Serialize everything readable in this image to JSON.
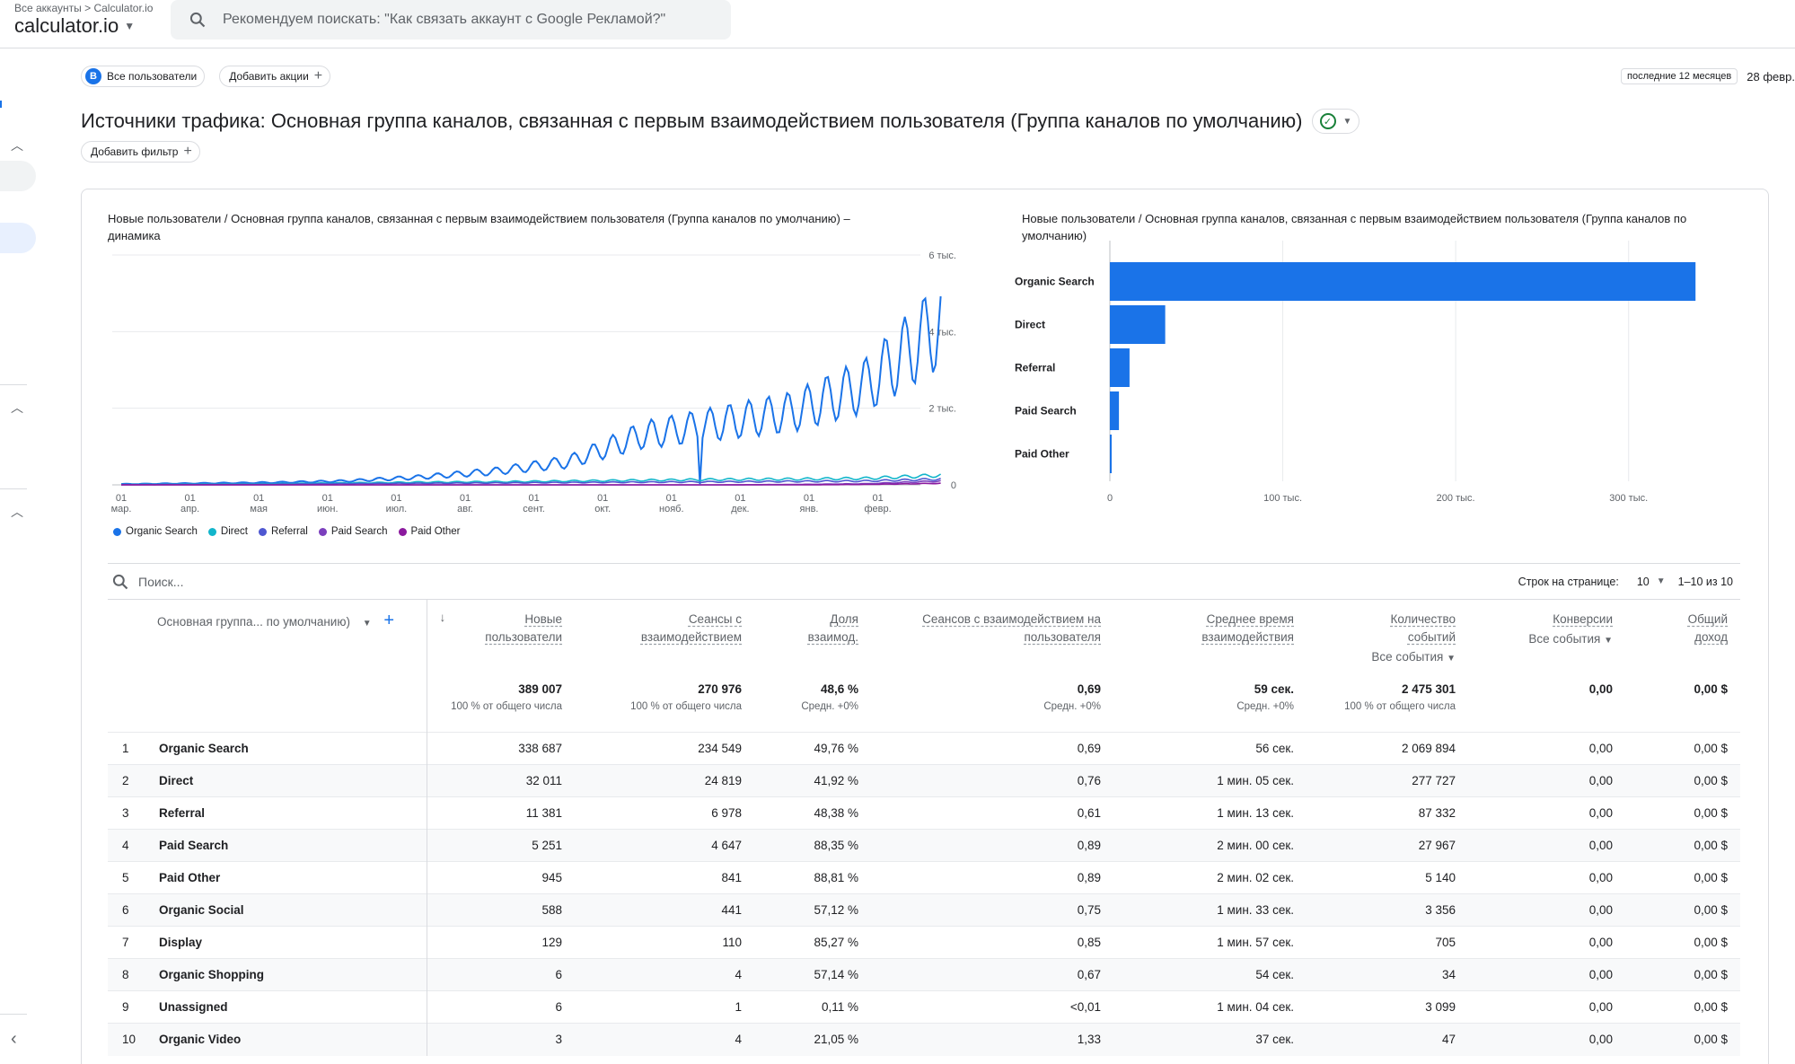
{
  "topbar": {
    "breadcrumb_root": "Все аккаунты",
    "breadcrumb_child": "Calculator.io",
    "account": "calculator.io",
    "search_placeholder": "Рекомендуем поискать: \"Как связать аккаунт с Google Рекламой?\""
  },
  "segments": {
    "avatar_letter": "B",
    "all_users": "Все пользователи",
    "add_comparison": "Добавить акции"
  },
  "date": {
    "range_label": "последние 12 месяцев",
    "start": "28 февр."
  },
  "page": {
    "title": "Источники трафика: Основная группа каналов, связанная с первым взаимодействием пользователя (Группа каналов по умолчанию)",
    "add_filter": "Добавить фильтр"
  },
  "line_chart": {
    "title_line1": "Новые пользователи / Основная группа каналов, связанная с первым взаимодействием пользователя (Группа каналов по умолчанию) –",
    "title_line2": "динамика",
    "y_labels": [
      "6 тыс.",
      "4 тыс.",
      "2 тыс.",
      "0"
    ],
    "x_labels": [
      {
        "d": "01",
        "m": "мар."
      },
      {
        "d": "01",
        "m": "апр."
      },
      {
        "d": "01",
        "m": "мая"
      },
      {
        "d": "01",
        "m": "июн."
      },
      {
        "d": "01",
        "m": "июл."
      },
      {
        "d": "01",
        "m": "авг."
      },
      {
        "d": "01",
        "m": "сент."
      },
      {
        "d": "01",
        "m": "окт."
      },
      {
        "d": "01",
        "m": "нояб."
      },
      {
        "d": "01",
        "m": "дек."
      },
      {
        "d": "01",
        "m": "янв."
      },
      {
        "d": "01",
        "m": "февр."
      }
    ]
  },
  "legend": [
    {
      "name": "Organic Search",
      "color": "#1a73e8"
    },
    {
      "name": "Direct",
      "color": "#12b5cb"
    },
    {
      "name": "Referral",
      "color": "#4e57d1"
    },
    {
      "name": "Paid Search",
      "color": "#7b3fbd"
    },
    {
      "name": "Paid Other",
      "color": "#8b1a9e"
    }
  ],
  "bar_chart": {
    "title_line1": "Новые пользователи / Основная группа каналов, связанная с первым взаимодействием пользователя (Группа каналов по",
    "title_line2": "умолчанию)",
    "x_ticks": [
      "0",
      "100 тыс.",
      "200 тыс.",
      "300 тыс."
    ]
  },
  "chart_data": [
    {
      "type": "line",
      "x": [
        "01 мар.",
        "01 апр.",
        "01 мая",
        "01 июн.",
        "01 июл.",
        "01 авг.",
        "01 сент.",
        "01 окт.",
        "01 нояб.",
        "01 дек.",
        "01 янв.",
        "01 февр."
      ],
      "ylim": [
        0,
        6000
      ],
      "series": [
        {
          "name": "Organic Search",
          "values": [
            20,
            40,
            60,
            100,
            200,
            350,
            600,
            1300,
            1600,
            1900,
            2600,
            4200
          ]
        },
        {
          "name": "Direct",
          "values": [
            10,
            20,
            30,
            50,
            70,
            80,
            100,
            120,
            140,
            150,
            170,
            250
          ]
        },
        {
          "name": "Referral",
          "values": [
            5,
            10,
            15,
            30,
            40,
            50,
            60,
            70,
            80,
            90,
            100,
            150
          ]
        },
        {
          "name": "Paid Search",
          "values": [
            0,
            0,
            0,
            0,
            0,
            0,
            0,
            0,
            0,
            10,
            30,
            100
          ]
        },
        {
          "name": "Paid Other",
          "values": [
            0,
            0,
            0,
            0,
            0,
            0,
            0,
            0,
            0,
            0,
            10,
            40
          ]
        }
      ]
    },
    {
      "type": "bar",
      "categories": [
        "Organic Search",
        "Direct",
        "Referral",
        "Paid Search",
        "Paid Other"
      ],
      "values": [
        338687,
        32011,
        11381,
        5251,
        945
      ],
      "xlim": [
        0,
        350000
      ],
      "x_ticks": [
        0,
        100000,
        200000,
        300000
      ]
    }
  ],
  "table": {
    "search_placeholder": "Поиск...",
    "rows_per_page_label": "Строк на странице:",
    "rows_per_page": "10",
    "range": "1–10 из 10",
    "dim_header": "Основная группа... по умолчанию)",
    "headers": [
      {
        "l1": "Новые",
        "l2": "пользователи"
      },
      {
        "l1": "Сеансы с",
        "l2": "взаимодействием"
      },
      {
        "l1": "Доля",
        "l2": "взаимод."
      },
      {
        "l1": "Сеансов с взаимодействием на",
        "l2": "пользователя"
      },
      {
        "l1": "Среднее время",
        "l2": "взаимодействия"
      },
      {
        "l1": "Количество",
        "l2": "событий",
        "sub": "Все события"
      },
      {
        "l1": "Конверсии",
        "l2": "",
        "sub": "Все события"
      },
      {
        "l1": "Общий",
        "l2": "доход"
      }
    ],
    "totals": [
      {
        "v": "389 007",
        "s": "100 % от общего числа"
      },
      {
        "v": "270 976",
        "s": "100 % от общего числа"
      },
      {
        "v": "48,6 %",
        "s": "Средн. +0%"
      },
      {
        "v": "0,69",
        "s": "Средн. +0%"
      },
      {
        "v": "59 сек.",
        "s": "Средн. +0%"
      },
      {
        "v": "2 475 301",
        "s": "100 % от общего числа"
      },
      {
        "v": "0,00",
        "s": ""
      },
      {
        "v": "0,00 $",
        "s": ""
      }
    ],
    "rows": [
      {
        "i": "1",
        "name": "Organic Search",
        "c": [
          "338 687",
          "234 549",
          "49,76 %",
          "0,69",
          "56 сек.",
          "2 069 894",
          "0,00",
          "0,00 $"
        ]
      },
      {
        "i": "2",
        "name": "Direct",
        "c": [
          "32 011",
          "24 819",
          "41,92 %",
          "0,76",
          "1 мин. 05 сек.",
          "277 727",
          "0,00",
          "0,00 $"
        ]
      },
      {
        "i": "3",
        "name": "Referral",
        "c": [
          "11 381",
          "6 978",
          "48,38 %",
          "0,61",
          "1 мин. 13 сек.",
          "87 332",
          "0,00",
          "0,00 $"
        ]
      },
      {
        "i": "4",
        "name": "Paid Search",
        "c": [
          "5 251",
          "4 647",
          "88,35 %",
          "0,89",
          "2 мин. 00 сек.",
          "27 967",
          "0,00",
          "0,00 $"
        ]
      },
      {
        "i": "5",
        "name": "Paid Other",
        "c": [
          "945",
          "841",
          "88,81 %",
          "0,89",
          "2 мин. 02 сек.",
          "5 140",
          "0,00",
          "0,00 $"
        ]
      },
      {
        "i": "6",
        "name": "Organic Social",
        "c": [
          "588",
          "441",
          "57,12 %",
          "0,75",
          "1 мин. 33 сек.",
          "3 356",
          "0,00",
          "0,00 $"
        ]
      },
      {
        "i": "7",
        "name": "Display",
        "c": [
          "129",
          "110",
          "85,27 %",
          "0,85",
          "1 мин. 57 сек.",
          "705",
          "0,00",
          "0,00 $"
        ]
      },
      {
        "i": "8",
        "name": "Organic Shopping",
        "c": [
          "6",
          "4",
          "57,14 %",
          "0,67",
          "54 сек.",
          "34",
          "0,00",
          "0,00 $"
        ]
      },
      {
        "i": "9",
        "name": "Unassigned",
        "c": [
          "6",
          "1",
          "0,11 %",
          "<0,01",
          "1 мин. 04 сек.",
          "3 099",
          "0,00",
          "0,00 $"
        ]
      },
      {
        "i": "10",
        "name": "Organic Video",
        "c": [
          "3",
          "4",
          "21,05 %",
          "1,33",
          "37 сек.",
          "47",
          "0,00",
          "0,00 $"
        ]
      }
    ]
  }
}
